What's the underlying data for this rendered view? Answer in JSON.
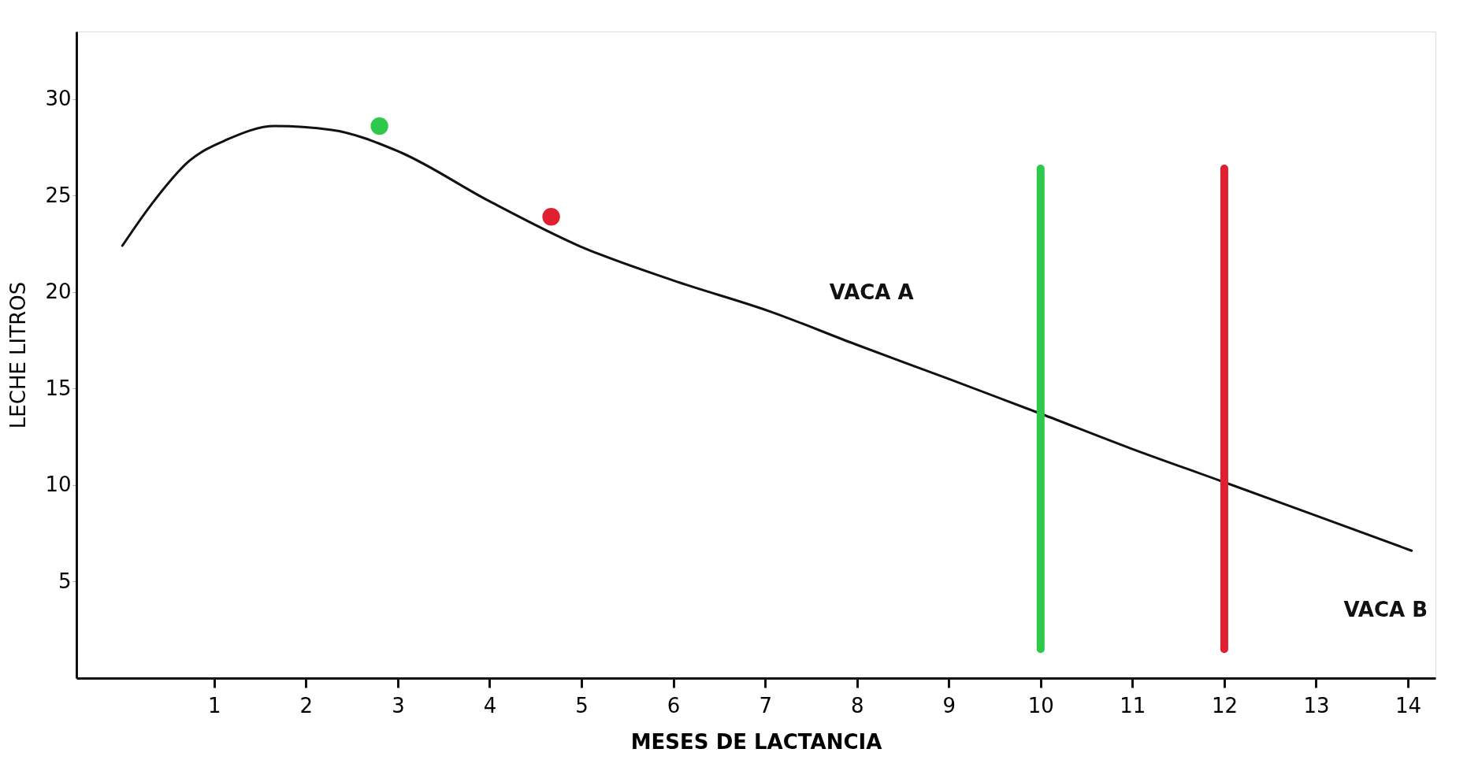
{
  "chart_data": {
    "type": "line",
    "xlabel": "MESES DE LACTANCIA",
    "ylabel": "LECHE LITROS",
    "xlim": [
      -0.5,
      14.3
    ],
    "ylim": [
      0,
      33.5
    ],
    "xticks": [
      1,
      2,
      3,
      4,
      5,
      6,
      7,
      8,
      9,
      10,
      11,
      12,
      13,
      14
    ],
    "yticks": [
      5,
      10,
      15,
      20,
      25,
      30
    ],
    "grid": false,
    "line_style": "solid",
    "series": [
      {
        "color": "#111111",
        "x": [
          0,
          0.31,
          0.73,
          1.14,
          1.66,
          2.28,
          3,
          4,
          4.97,
          6,
          7.05,
          7.98,
          9,
          10,
          10.98,
          11.97,
          12.95,
          14.04
        ],
        "values": [
          22.4,
          24.5,
          26.8,
          27.9,
          28.6,
          28.4,
          27.3,
          24.7,
          22.4,
          20.6,
          19,
          17.3,
          15.5,
          13.7,
          11.9,
          10.2,
          8.5,
          6.6
        ]
      },
      {
        "type": "scatter",
        "marker": "circle",
        "color": "#2ec84a",
        "x": [
          2.8
        ],
        "values": [
          28.6
        ]
      },
      {
        "type": "scatter",
        "marker": "circle",
        "color": "#e02030",
        "x": [
          4.67
        ],
        "values": [
          23.9
        ]
      },
      {
        "type": "line",
        "color": "#2ec84a",
        "x": [
          10,
          10
        ],
        "values": [
          1.5,
          26.4
        ]
      },
      {
        "type": "line",
        "color": "#e02030",
        "x": [
          12,
          12
        ],
        "values": [
          1.5,
          26.4
        ]
      }
    ],
    "annotations": [
      "VACA A",
      "VACA B"
    ]
  }
}
